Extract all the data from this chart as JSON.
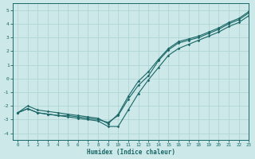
{
  "xlabel": "Humidex (Indice chaleur)",
  "ylabel": "",
  "xlim": [
    -0.5,
    23
  ],
  "ylim": [
    -4.5,
    5.5
  ],
  "yticks": [
    -4,
    -3,
    -2,
    -1,
    0,
    1,
    2,
    3,
    4,
    5
  ],
  "xticks": [
    0,
    1,
    2,
    3,
    4,
    5,
    6,
    7,
    8,
    9,
    10,
    11,
    12,
    13,
    14,
    15,
    16,
    17,
    18,
    19,
    20,
    21,
    22,
    23
  ],
  "background_color": "#cce8e8",
  "grid_color": "#b0d4d4",
  "line_color": "#1a6666",
  "x": [
    0,
    1,
    2,
    3,
    4,
    5,
    6,
    7,
    8,
    9,
    10,
    11,
    12,
    13,
    14,
    15,
    16,
    17,
    18,
    19,
    20,
    21,
    22,
    23
  ],
  "line1": [
    -2.5,
    -2.2,
    -2.5,
    -2.6,
    -2.7,
    -2.7,
    -2.8,
    -2.9,
    -3.0,
    -3.2,
    -2.7,
    -1.5,
    -0.5,
    0.2,
    1.3,
    2.1,
    2.6,
    2.8,
    3.0,
    3.3,
    3.6,
    4.0,
    4.3,
    4.8
  ],
  "line2": [
    -2.5,
    -2.2,
    -2.5,
    -2.6,
    -2.7,
    -2.8,
    -2.9,
    -3.0,
    -3.1,
    -3.5,
    -3.5,
    -2.3,
    -1.1,
    -0.1,
    0.8,
    1.7,
    2.2,
    2.5,
    2.8,
    3.1,
    3.4,
    3.8,
    4.1,
    4.6
  ],
  "line3": [
    -2.5,
    -2.0,
    -2.3,
    -2.4,
    -2.5,
    -2.6,
    -2.7,
    -2.8,
    -2.9,
    -3.3,
    -2.6,
    -1.3,
    -0.2,
    0.5,
    1.4,
    2.2,
    2.7,
    2.9,
    3.1,
    3.4,
    3.7,
    4.1,
    4.4,
    4.9
  ],
  "figwidth": 3.2,
  "figheight": 2.0,
  "dpi": 100
}
